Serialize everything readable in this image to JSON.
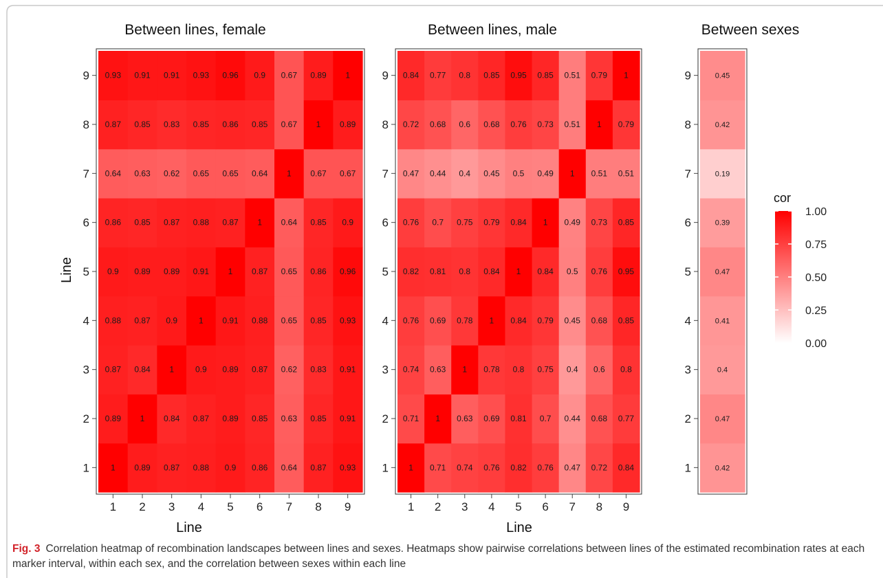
{
  "chart_data": {
    "type": "heatmap",
    "color_scale": {
      "low": "#ffffff",
      "high": "#ff0000",
      "range": [
        0,
        1
      ],
      "legend_title": "cor",
      "legend_ticks": [
        "1.00",
        "0.75",
        "0.50",
        "0.25",
        "0.00"
      ],
      "legend_tick_values": [
        1.0,
        0.75,
        0.5,
        0.25,
        0.0
      ]
    },
    "panels": [
      {
        "title": "Between lines, female",
        "xlabel": "Line",
        "ylabel": "Line",
        "x_categories": [
          "1",
          "2",
          "3",
          "4",
          "5",
          "6",
          "7",
          "8",
          "9"
        ],
        "y_categories": [
          "1",
          "2",
          "3",
          "4",
          "5",
          "6",
          "7",
          "8",
          "9"
        ],
        "values": [
          [
            "1",
            "0.89",
            "0.87",
            "0.88",
            "0.9",
            "0.86",
            "0.64",
            "0.87",
            "0.93"
          ],
          [
            "0.89",
            "1",
            "0.84",
            "0.87",
            "0.89",
            "0.85",
            "0.63",
            "0.85",
            "0.91"
          ],
          [
            "0.87",
            "0.84",
            "1",
            "0.9",
            "0.89",
            "0.87",
            "0.62",
            "0.83",
            "0.91"
          ],
          [
            "0.88",
            "0.87",
            "0.9",
            "1",
            "0.91",
            "0.88",
            "0.65",
            "0.85",
            "0.93"
          ],
          [
            "0.9",
            "0.89",
            "0.89",
            "0.91",
            "1",
            "0.87",
            "0.65",
            "0.86",
            "0.96"
          ],
          [
            "0.86",
            "0.85",
            "0.87",
            "0.88",
            "0.87",
            "1",
            "0.64",
            "0.85",
            "0.9"
          ],
          [
            "0.64",
            "0.63",
            "0.62",
            "0.65",
            "0.65",
            "0.64",
            "1",
            "0.67",
            "0.67"
          ],
          [
            "0.87",
            "0.85",
            "0.83",
            "0.85",
            "0.86",
            "0.85",
            "0.67",
            "1",
            "0.89"
          ],
          [
            "0.93",
            "0.91",
            "0.91",
            "0.93",
            "0.96",
            "0.9",
            "0.67",
            "0.89",
            "1"
          ]
        ]
      },
      {
        "title": "Between lines, male",
        "xlabel": "Line",
        "ylabel": "",
        "x_categories": [
          "1",
          "2",
          "3",
          "4",
          "5",
          "6",
          "7",
          "8",
          "9"
        ],
        "y_categories": [
          "1",
          "2",
          "3",
          "4",
          "5",
          "6",
          "7",
          "8",
          "9"
        ],
        "values": [
          [
            "1",
            "0.71",
            "0.74",
            "0.76",
            "0.82",
            "0.76",
            "0.47",
            "0.72",
            "0.84"
          ],
          [
            "0.71",
            "1",
            "0.63",
            "0.69",
            "0.81",
            "0.7",
            "0.44",
            "0.68",
            "0.77"
          ],
          [
            "0.74",
            "0.63",
            "1",
            "0.78",
            "0.8",
            "0.75",
            "0.4",
            "0.6",
            "0.8"
          ],
          [
            "0.76",
            "0.69",
            "0.78",
            "1",
            "0.84",
            "0.79",
            "0.45",
            "0.68",
            "0.85"
          ],
          [
            "0.82",
            "0.81",
            "0.8",
            "0.84",
            "1",
            "0.84",
            "0.5",
            "0.76",
            "0.95"
          ],
          [
            "0.76",
            "0.7",
            "0.75",
            "0.79",
            "0.84",
            "1",
            "0.49",
            "0.73",
            "0.85"
          ],
          [
            "0.47",
            "0.44",
            "0.4",
            "0.45",
            "0.5",
            "0.49",
            "1",
            "0.51",
            "0.51"
          ],
          [
            "0.72",
            "0.68",
            "0.6",
            "0.68",
            "0.76",
            "0.73",
            "0.51",
            "1",
            "0.79"
          ],
          [
            "0.84",
            "0.77",
            "0.8",
            "0.85",
            "0.95",
            "0.85",
            "0.51",
            "0.79",
            "1"
          ]
        ]
      },
      {
        "title": "Between sexes",
        "xlabel": "",
        "ylabel": "",
        "x_categories": [],
        "y_categories": [
          "1",
          "2",
          "3",
          "4",
          "5",
          "6",
          "7",
          "8",
          "9"
        ],
        "values": [
          [
            "0.42"
          ],
          [
            "0.47"
          ],
          [
            "0.4"
          ],
          [
            "0.41"
          ],
          [
            "0.47"
          ],
          [
            "0.39"
          ],
          [
            "0.19"
          ],
          [
            "0.42"
          ],
          [
            "0.45"
          ]
        ]
      }
    ]
  },
  "caption": {
    "label": "Fig. 3",
    "text": "Correlation heatmap of recombination landscapes between lines and sexes. Heatmaps show pairwise correlations between lines of the estimated recombination rates at each marker interval, within each sex, and the correlation between sexes within each line"
  }
}
